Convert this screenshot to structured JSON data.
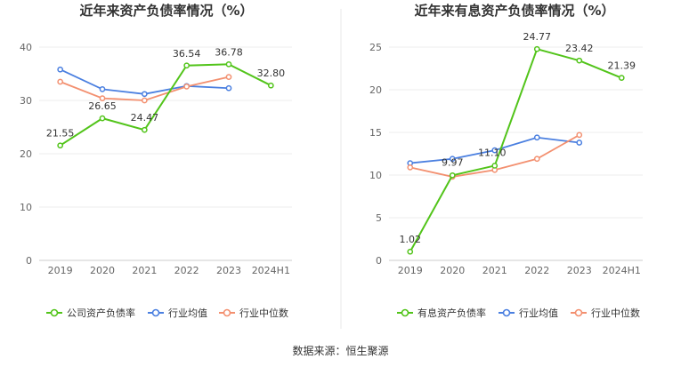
{
  "source_label": "数据来源：恒生聚源",
  "chart_data": [
    {
      "type": "line",
      "title": "近年来资产负债率情况（%）",
      "categories": [
        "2019",
        "2020",
        "2021",
        "2022",
        "2023",
        "2024H1"
      ],
      "ylim": [
        0,
        40
      ],
      "yticks": [
        0,
        10,
        20,
        30,
        40
      ],
      "grid": true,
      "legend_position": "bottom",
      "series": [
        {
          "name": "公司资产负债率",
          "color": "#52c41a",
          "values": [
            21.55,
            26.65,
            24.47,
            36.54,
            36.78,
            32.8
          ],
          "labels": [
            "21.55",
            "26.65",
            "24.47",
            "36.54",
            "36.78",
            "32.80"
          ]
        },
        {
          "name": "行业均值",
          "color": "#4a7fe0",
          "values": [
            35.8,
            32.1,
            31.2,
            32.7,
            32.3,
            null
          ]
        },
        {
          "name": "行业中位数",
          "color": "#f39070",
          "values": [
            33.5,
            30.4,
            30.0,
            32.6,
            34.4,
            null
          ]
        }
      ]
    },
    {
      "type": "line",
      "title": "近年来有息资产负债率情况（%）",
      "categories": [
        "2019",
        "2020",
        "2021",
        "2022",
        "2023",
        "2024H1"
      ],
      "ylim": [
        0,
        25
      ],
      "yticks": [
        0,
        5,
        10,
        15,
        20,
        25
      ],
      "grid": true,
      "legend_position": "bottom",
      "series": [
        {
          "name": "有息资产负债率",
          "color": "#52c41a",
          "values": [
            1.02,
            9.97,
            11.1,
            24.77,
            23.42,
            21.39
          ],
          "labels": [
            "1.02",
            "9.97",
            "11.10",
            "24.77",
            "23.42",
            "21.39"
          ]
        },
        {
          "name": "行业均值",
          "color": "#4a7fe0",
          "values": [
            11.4,
            11.9,
            12.9,
            14.4,
            13.8,
            null
          ]
        },
        {
          "name": "行业中位数",
          "color": "#f39070",
          "values": [
            10.9,
            9.8,
            10.6,
            11.9,
            14.7,
            null
          ]
        }
      ]
    }
  ]
}
